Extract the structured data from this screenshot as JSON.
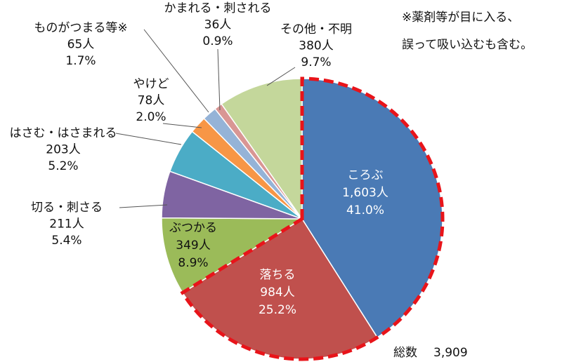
{
  "chart_data": {
    "type": "pie",
    "categories": [
      "ころぶ",
      "落ちる",
      "ぶつかる",
      "切る・刺さる",
      "はさむ・はさまれる",
      "やけど",
      "ものがつまる等※",
      "かまれる・刺される",
      "その他・不明"
    ],
    "values": [
      1603,
      984,
      349,
      211,
      203,
      78,
      65,
      36,
      380
    ],
    "value_labels": [
      "1,603人",
      "984人",
      "349人",
      "211人",
      "203人",
      "78人",
      "65人",
      "36人",
      "380人"
    ],
    "percent_labels": [
      "41.0%",
      "25.2%",
      "8.9%",
      "5.4%",
      "5.2%",
      "2.0%",
      "1.7%",
      "0.9%",
      "9.7%"
    ],
    "colors": [
      "#4a7ab5",
      "#c0504d",
      "#9bbb59",
      "#7f64a2",
      "#4bacc6",
      "#f79646",
      "#95b3d7",
      "#d99694",
      "#c4d79b"
    ],
    "highlight": [
      0,
      1
    ],
    "highlight_color": "#e8141a",
    "total": {
      "label": "総数",
      "value": 3909,
      "value_label": "3,909"
    },
    "note": [
      "※薬剤等が目に入る、",
      "誤って吸い込むも含む。"
    ]
  }
}
